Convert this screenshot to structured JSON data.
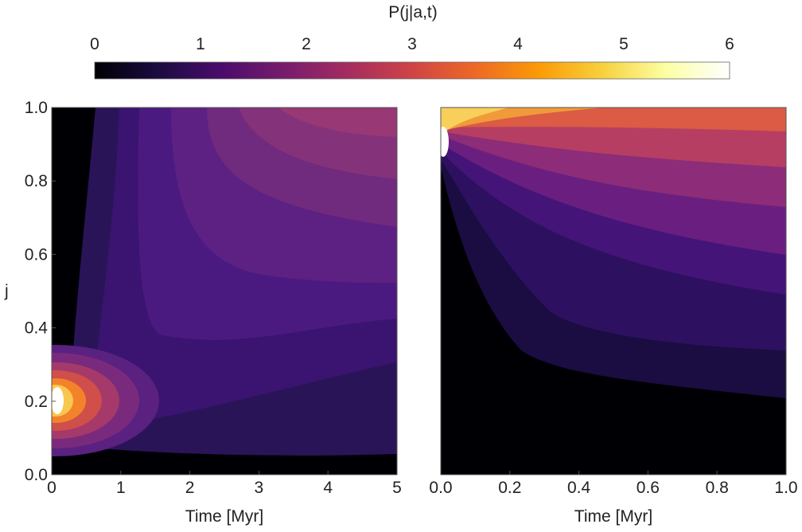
{
  "chart_data": {
    "colorbar": {
      "title": "P(j|a,t)",
      "range": [
        0,
        6
      ],
      "ticks": [
        0,
        1,
        2,
        3,
        4,
        5,
        6
      ],
      "tick_labels": [
        "0",
        "1",
        "2",
        "3",
        "4",
        "5",
        "6"
      ],
      "colormap": [
        "#000004",
        "#1b0c41",
        "#4a0c6b",
        "#781c6d",
        "#a52c60",
        "#cf4446",
        "#ed6925",
        "#fb9b06",
        "#f7d13d",
        "#fcffa4",
        "#ffffff"
      ]
    },
    "panels": [
      {
        "type": "heatmap",
        "xlabel": "Time [Myr]",
        "ylabel": "j",
        "xlim": [
          0,
          5
        ],
        "ylim": [
          0,
          1
        ],
        "xticks": [
          0,
          1,
          2,
          3,
          4,
          5
        ],
        "xtick_labels": [
          "0",
          "1",
          "2",
          "3",
          "4",
          "5"
        ],
        "yticks": [
          0,
          0.2,
          0.4,
          0.6,
          0.8,
          1.0
        ],
        "ytick_labels": [
          "0.0",
          "0.2",
          "0.4",
          "0.6",
          "0.8",
          "1.0"
        ],
        "peak": {
          "x": 0.1,
          "y": 0.2,
          "value": 6
        }
      },
      {
        "type": "heatmap",
        "xlabel": "Time [Myr]",
        "ylabel": "",
        "xlim": [
          0,
          1
        ],
        "ylim": [
          0,
          1
        ],
        "xticks": [
          0,
          0.2,
          0.4,
          0.6,
          0.8,
          1.0
        ],
        "xtick_labels": [
          "0.0",
          "0.2",
          "0.4",
          "0.6",
          "0.8",
          "1.0"
        ],
        "yticks": [],
        "ytick_labels": [],
        "peak": {
          "x": 0.01,
          "y": 0.9,
          "value": 6
        }
      }
    ]
  }
}
